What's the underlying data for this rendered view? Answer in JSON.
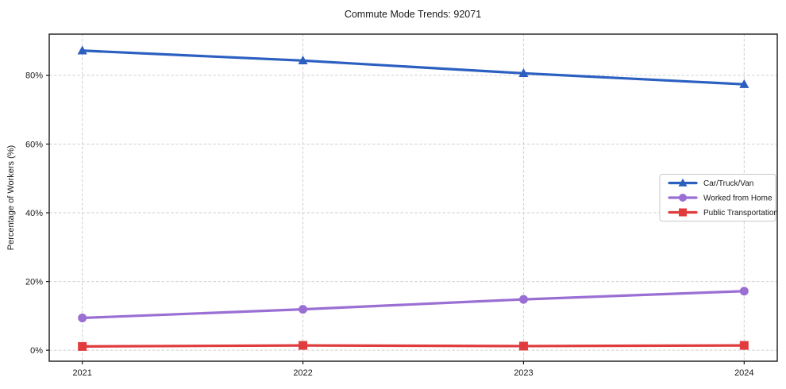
{
  "chart_data": {
    "type": "line",
    "title": "Commute Mode Trends: 92071",
    "xlabel": "",
    "ylabel": "Percentage of Workers (%)",
    "x": [
      2021,
      2022,
      2023,
      2024
    ],
    "x_tick_labels": [
      "2021",
      "2022",
      "2023",
      "2024"
    ],
    "y_ticks": [
      0,
      20,
      40,
      60,
      80
    ],
    "y_tick_labels": [
      "0%",
      "20%",
      "40%",
      "60%",
      "80%"
    ],
    "xlim": [
      2020.85,
      2024.15
    ],
    "ylim": [
      -3.2,
      92.0
    ],
    "grid": true,
    "grid_style": "dashed",
    "legend_position": "center right",
    "series": [
      {
        "name": "Car/Truck/Van",
        "marker": "triangle",
        "color": "#2b5fc0",
        "values": [
          87.2,
          84.3,
          80.6,
          77.4
        ]
      },
      {
        "name": "Worked from Home",
        "marker": "circle",
        "color": "#9a6fd4",
        "values": [
          9.4,
          11.9,
          14.8,
          17.2
        ]
      },
      {
        "name": "Public Transportation",
        "marker": "square",
        "color": "#e03c3e",
        "values": [
          1.1,
          1.4,
          1.2,
          1.4
        ]
      }
    ]
  },
  "colors": {
    "background": "#ffffff",
    "grid": "#cfcfcf",
    "axis_frame": "#1a1a1a",
    "text": "#1a1a1a",
    "legend_border": "#c9c9c9",
    "legend_background": "#ffffff"
  }
}
